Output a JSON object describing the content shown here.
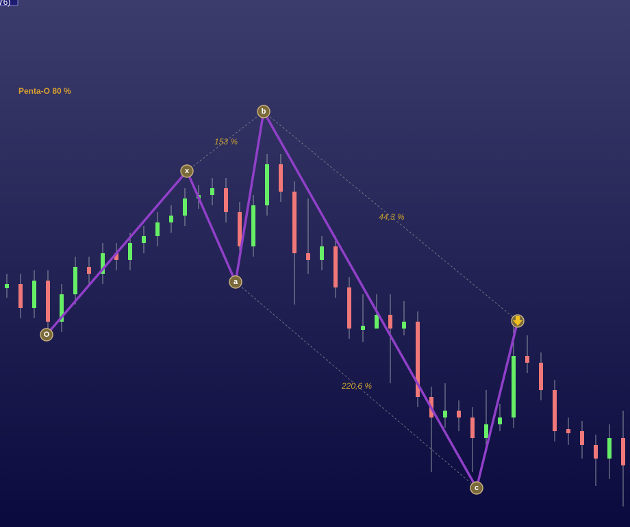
{
  "header": {
    "corner": "76)",
    "title": "Penta-O 80 %"
  },
  "points": [
    "O",
    "x",
    "a",
    "b",
    "c"
  ],
  "ratios": [
    "153 %",
    "44,3 %",
    "220,6 %"
  ]
}
